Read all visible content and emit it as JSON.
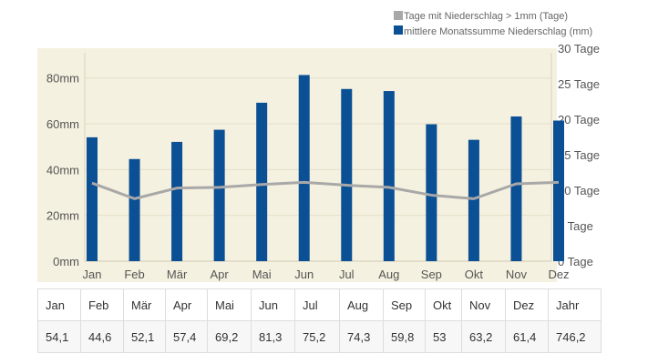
{
  "chart_data": {
    "type": "bar",
    "categories": [
      "Jan",
      "Feb",
      "Mär",
      "Apr",
      "Mai",
      "Jun",
      "Jul",
      "Aug",
      "Sep",
      "Okt",
      "Nov",
      "Dez"
    ],
    "series": [
      {
        "name": "mittlere Monatssumme Niederschlag (mm)",
        "type": "bar",
        "axis": "left",
        "values": [
          54.1,
          44.6,
          52.1,
          57.4,
          69.2,
          81.3,
          75.2,
          74.3,
          59.8,
          53,
          63.2,
          61.4
        ],
        "color": "#0b4f94"
      },
      {
        "name": "Tage mit Niederschlag > 1mm (Tage)",
        "type": "line",
        "axis": "right",
        "values": [
          11,
          8.8,
          10.3,
          10.4,
          10.8,
          11.1,
          10.7,
          10.4,
          9.3,
          8.8,
          10.9,
          11.1
        ],
        "color": "#a8a8a8"
      }
    ],
    "y_left": {
      "ticks": [
        "0mm",
        "20mm",
        "40mm",
        "60mm",
        "80mm"
      ],
      "ylim": [
        0,
        93
      ]
    },
    "y_right": {
      "ticks": [
        "0 Tage",
        "5 Tage",
        "10 Tage",
        "15 Tage",
        "20 Tage",
        "25 Tage",
        "30 Tage"
      ],
      "ylim": [
        0,
        30
      ]
    },
    "grid": true,
    "legend": "top-right",
    "plot_background": "#f5f1e0"
  },
  "table": {
    "headers": [
      "Jan",
      "Feb",
      "Mär",
      "Apr",
      "Mai",
      "Jun",
      "Jul",
      "Aug",
      "Sep",
      "Okt",
      "Nov",
      "Dez",
      "Jahr"
    ],
    "values": [
      "54,1",
      "44,6",
      "52,1",
      "57,4",
      "69,2",
      "81,3",
      "75,2",
      "74,3",
      "59,8",
      "53",
      "63,2",
      "61,4",
      "746,2"
    ]
  }
}
